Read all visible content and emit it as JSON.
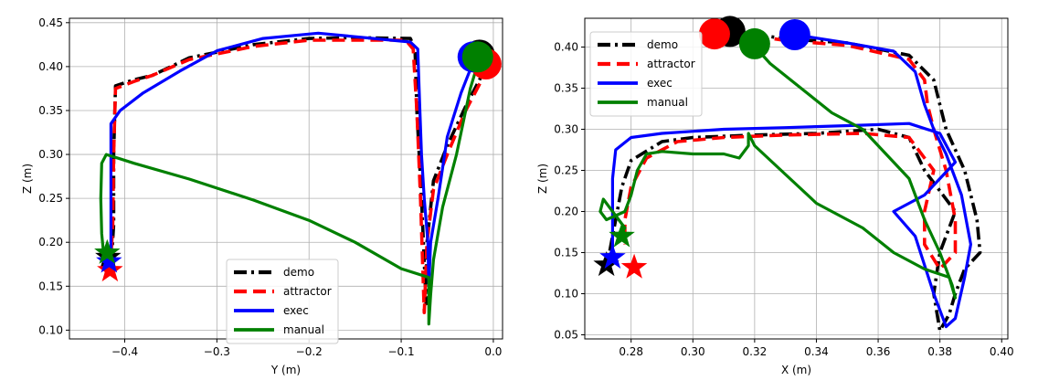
{
  "chart_data": [
    {
      "type": "line",
      "title": "",
      "xlabel": "Y (m)",
      "ylabel": "Z (m)",
      "xlim": [
        -0.46,
        0.01
      ],
      "ylim": [
        0.09,
        0.455
      ],
      "xticks": [
        -0.4,
        -0.3,
        -0.2,
        -0.1,
        0.0
      ],
      "xtick_labels": [
        "−0.4",
        "−0.3",
        "−0.2",
        "−0.1",
        "0.0"
      ],
      "yticks": [
        0.1,
        0.15,
        0.2,
        0.25,
        0.3,
        0.35,
        0.4,
        0.45
      ],
      "ytick_labels": [
        "0.10",
        "0.15",
        "0.20",
        "0.25",
        "0.30",
        "0.35",
        "0.40",
        "0.45"
      ],
      "grid": true,
      "legend_position": "lower-center",
      "series": [
        {
          "name": "demo",
          "color": "#000000",
          "style": "dashdot",
          "points": [
            [
              -0.005,
              0.405
            ],
            [
              -0.015,
              0.385
            ],
            [
              -0.03,
              0.355
            ],
            [
              -0.05,
              0.31
            ],
            [
              -0.065,
              0.27
            ],
            [
              -0.072,
              0.2
            ],
            [
              -0.073,
              0.13
            ],
            [
              -0.078,
              0.25
            ],
            [
              -0.083,
              0.35
            ],
            [
              -0.085,
              0.42
            ],
            [
              -0.09,
              0.432
            ],
            [
              -0.15,
              0.433
            ],
            [
              -0.2,
              0.432
            ],
            [
              -0.26,
              0.425
            ],
            [
              -0.33,
              0.41
            ],
            [
              -0.37,
              0.39
            ],
            [
              -0.39,
              0.385
            ],
            [
              -0.41,
              0.378
            ],
            [
              -0.412,
              0.3
            ],
            [
              -0.412,
              0.22
            ],
            [
              -0.415,
              0.17
            ]
          ]
        },
        {
          "name": "attractor",
          "color": "#ff0000",
          "style": "dashed",
          "points": [
            [
              -0.005,
              0.4
            ],
            [
              -0.015,
              0.38
            ],
            [
              -0.03,
              0.35
            ],
            [
              -0.05,
              0.3
            ],
            [
              -0.065,
              0.26
            ],
            [
              -0.072,
              0.2
            ],
            [
              -0.075,
              0.12
            ],
            [
              -0.079,
              0.25
            ],
            [
              -0.083,
              0.35
            ],
            [
              -0.087,
              0.42
            ],
            [
              -0.095,
              0.43
            ],
            [
              -0.15,
              0.43
            ],
            [
              -0.2,
              0.43
            ],
            [
              -0.26,
              0.423
            ],
            [
              -0.33,
              0.408
            ],
            [
              -0.37,
              0.39
            ],
            [
              -0.39,
              0.383
            ],
            [
              -0.41,
              0.375
            ],
            [
              -0.412,
              0.3
            ],
            [
              -0.413,
              0.22
            ],
            [
              -0.416,
              0.165
            ]
          ]
        },
        {
          "name": "exec",
          "color": "#0000ff",
          "style": "solid",
          "points": [
            [
              -0.02,
              0.41
            ],
            [
              -0.035,
              0.37
            ],
            [
              -0.05,
              0.32
            ],
            [
              -0.06,
              0.25
            ],
            [
              -0.068,
              0.2
            ],
            [
              -0.07,
              0.15
            ],
            [
              -0.071,
              0.2
            ],
            [
              -0.075,
              0.25
            ],
            [
              -0.078,
              0.3
            ],
            [
              -0.08,
              0.36
            ],
            [
              -0.082,
              0.42
            ],
            [
              -0.09,
              0.428
            ],
            [
              -0.13,
              0.432
            ],
            [
              -0.19,
              0.438
            ],
            [
              -0.25,
              0.432
            ],
            [
              -0.3,
              0.418
            ],
            [
              -0.34,
              0.395
            ],
            [
              -0.38,
              0.37
            ],
            [
              -0.405,
              0.35
            ],
            [
              -0.415,
              0.335
            ],
            [
              -0.415,
              0.3
            ],
            [
              -0.415,
              0.25
            ],
            [
              -0.415,
              0.2
            ],
            [
              -0.415,
              0.175
            ]
          ]
        },
        {
          "name": "manual",
          "color": "#008000",
          "style": "solid",
          "points": [
            [
              -0.015,
              0.41
            ],
            [
              -0.025,
              0.375
            ],
            [
              -0.04,
              0.3
            ],
            [
              -0.055,
              0.24
            ],
            [
              -0.065,
              0.18
            ],
            [
              -0.068,
              0.14
            ],
            [
              -0.07,
              0.107
            ],
            [
              -0.07,
              0.16
            ],
            [
              -0.1,
              0.17
            ],
            [
              -0.15,
              0.2
            ],
            [
              -0.2,
              0.225
            ],
            [
              -0.26,
              0.248
            ],
            [
              -0.33,
              0.272
            ],
            [
              -0.39,
              0.29
            ],
            [
              -0.42,
              0.3
            ],
            [
              -0.425,
              0.29
            ],
            [
              -0.426,
              0.25
            ],
            [
              -0.425,
              0.21
            ],
            [
              -0.423,
              0.188
            ]
          ]
        }
      ],
      "markers": [
        {
          "series": "demo",
          "shape": "circle",
          "x": -0.015,
          "y": 0.413
        },
        {
          "series": "attractor",
          "shape": "circle",
          "x": -0.008,
          "y": 0.403
        },
        {
          "series": "exec",
          "shape": "circle",
          "x": -0.022,
          "y": 0.411
        },
        {
          "series": "manual",
          "shape": "circle",
          "x": -0.017,
          "y": 0.411
        },
        {
          "series": "demo",
          "shape": "star",
          "x": -0.418,
          "y": 0.183
        },
        {
          "series": "attractor",
          "shape": "star",
          "x": -0.416,
          "y": 0.168
        },
        {
          "series": "exec",
          "shape": "star",
          "x": -0.417,
          "y": 0.178
        },
        {
          "series": "manual",
          "shape": "star",
          "x": -0.419,
          "y": 0.188
        }
      ]
    },
    {
      "type": "line",
      "title": "",
      "xlabel": "X (m)",
      "ylabel": "Z (m)",
      "xlim": [
        0.265,
        0.402
      ],
      "ylim": [
        0.045,
        0.435
      ],
      "xticks": [
        0.28,
        0.3,
        0.32,
        0.34,
        0.36,
        0.38,
        0.4
      ],
      "xtick_labels": [
        "0.28",
        "0.30",
        "0.32",
        "0.34",
        "0.36",
        "0.38",
        "0.40"
      ],
      "yticks": [
        0.05,
        0.1,
        0.15,
        0.2,
        0.25,
        0.3,
        0.35,
        0.4
      ],
      "ytick_labels": [
        "0.05",
        "0.10",
        "0.15",
        "0.20",
        "0.25",
        "0.30",
        "0.35",
        "0.40"
      ],
      "grid": true,
      "legend_position": "top-left",
      "series": [
        {
          "name": "demo",
          "color": "#000000",
          "style": "dashdot",
          "points": [
            [
              0.312,
              0.42
            ],
            [
              0.33,
              0.41
            ],
            [
              0.35,
              0.405
            ],
            [
              0.37,
              0.39
            ],
            [
              0.378,
              0.36
            ],
            [
              0.38,
              0.33
            ],
            [
              0.382,
              0.3
            ],
            [
              0.388,
              0.25
            ],
            [
              0.392,
              0.19
            ],
            [
              0.393,
              0.15
            ],
            [
              0.388,
              0.13
            ],
            [
              0.385,
              0.1
            ],
            [
              0.383,
              0.075
            ],
            [
              0.38,
              0.055
            ],
            [
              0.378,
              0.1
            ],
            [
              0.38,
              0.15
            ],
            [
              0.385,
              0.2
            ],
            [
              0.375,
              0.25
            ],
            [
              0.37,
              0.29
            ],
            [
              0.36,
              0.3
            ],
            [
              0.34,
              0.295
            ],
            [
              0.32,
              0.293
            ],
            [
              0.3,
              0.29
            ],
            [
              0.29,
              0.285
            ],
            [
              0.28,
              0.262
            ],
            [
              0.277,
              0.23
            ],
            [
              0.275,
              0.19
            ],
            [
              0.273,
              0.15
            ],
            [
              0.272,
              0.135
            ]
          ]
        },
        {
          "name": "attractor",
          "color": "#ff0000",
          "style": "dashed",
          "points": [
            [
              0.308,
              0.42
            ],
            [
              0.33,
              0.408
            ],
            [
              0.35,
              0.402
            ],
            [
              0.37,
              0.385
            ],
            [
              0.375,
              0.36
            ],
            [
              0.376,
              0.33
            ],
            [
              0.378,
              0.3
            ],
            [
              0.382,
              0.25
            ],
            [
              0.385,
              0.19
            ],
            [
              0.385,
              0.15
            ],
            [
              0.38,
              0.13
            ],
            [
              0.375,
              0.16
            ],
            [
              0.375,
              0.2
            ],
            [
              0.378,
              0.25
            ],
            [
              0.37,
              0.29
            ],
            [
              0.355,
              0.295
            ],
            [
              0.33,
              0.293
            ],
            [
              0.31,
              0.29
            ],
            [
              0.295,
              0.285
            ],
            [
              0.285,
              0.265
            ],
            [
              0.28,
              0.23
            ],
            [
              0.278,
              0.19
            ],
            [
              0.278,
              0.16
            ]
          ]
        },
        {
          "name": "exec",
          "color": "#0000ff",
          "style": "solid",
          "points": [
            [
              0.333,
              0.415
            ],
            [
              0.35,
              0.405
            ],
            [
              0.365,
              0.395
            ],
            [
              0.372,
              0.37
            ],
            [
              0.375,
              0.33
            ],
            [
              0.378,
              0.3
            ],
            [
              0.382,
              0.27
            ],
            [
              0.387,
              0.22
            ],
            [
              0.39,
              0.16
            ],
            [
              0.388,
              0.12
            ],
            [
              0.385,
              0.07
            ],
            [
              0.382,
              0.06
            ],
            [
              0.378,
              0.1
            ],
            [
              0.372,
              0.17
            ],
            [
              0.365,
              0.2
            ],
            [
              0.375,
              0.22
            ],
            [
              0.385,
              0.26
            ],
            [
              0.38,
              0.295
            ],
            [
              0.37,
              0.307
            ],
            [
              0.355,
              0.305
            ],
            [
              0.33,
              0.302
            ],
            [
              0.31,
              0.3
            ],
            [
              0.29,
              0.295
            ],
            [
              0.28,
              0.29
            ],
            [
              0.275,
              0.275
            ],
            [
              0.274,
              0.24
            ],
            [
              0.274,
              0.2
            ],
            [
              0.274,
              0.165
            ],
            [
              0.274,
              0.145
            ]
          ]
        },
        {
          "name": "manual",
          "color": "#008000",
          "style": "solid",
          "points": [
            [
              0.319,
              0.405
            ],
            [
              0.325,
              0.38
            ],
            [
              0.335,
              0.35
            ],
            [
              0.345,
              0.32
            ],
            [
              0.355,
              0.3
            ],
            [
              0.36,
              0.28
            ],
            [
              0.37,
              0.24
            ],
            [
              0.375,
              0.19
            ],
            [
              0.38,
              0.15
            ],
            [
              0.383,
              0.12
            ],
            [
              0.385,
              0.095
            ],
            [
              0.384,
              0.11
            ],
            [
              0.383,
              0.12
            ],
            [
              0.375,
              0.13
            ],
            [
              0.365,
              0.15
            ],
            [
              0.355,
              0.18
            ],
            [
              0.34,
              0.21
            ],
            [
              0.33,
              0.245
            ],
            [
              0.32,
              0.28
            ],
            [
              0.318,
              0.295
            ],
            [
              0.318,
              0.28
            ],
            [
              0.315,
              0.265
            ],
            [
              0.31,
              0.27
            ],
            [
              0.3,
              0.27
            ],
            [
              0.29,
              0.273
            ],
            [
              0.285,
              0.27
            ],
            [
              0.282,
              0.25
            ],
            [
              0.28,
              0.22
            ],
            [
              0.278,
              0.2
            ],
            [
              0.272,
              0.19
            ],
            [
              0.27,
              0.2
            ],
            [
              0.271,
              0.215
            ],
            [
              0.278,
              0.18
            ],
            [
              0.276,
              0.17
            ]
          ]
        }
      ],
      "markers": [
        {
          "series": "demo",
          "shape": "circle",
          "x": 0.312,
          "y": 0.419
        },
        {
          "series": "attractor",
          "shape": "circle",
          "x": 0.307,
          "y": 0.416
        },
        {
          "series": "exec",
          "shape": "circle",
          "x": 0.333,
          "y": 0.415
        },
        {
          "series": "manual",
          "shape": "circle",
          "x": 0.32,
          "y": 0.404
        },
        {
          "series": "demo",
          "shape": "star",
          "x": 0.272,
          "y": 0.135
        },
        {
          "series": "attractor",
          "shape": "star",
          "x": 0.281,
          "y": 0.132
        },
        {
          "series": "exec",
          "shape": "star",
          "x": 0.274,
          "y": 0.144
        },
        {
          "series": "manual",
          "shape": "star",
          "x": 0.277,
          "y": 0.17
        }
      ]
    }
  ]
}
